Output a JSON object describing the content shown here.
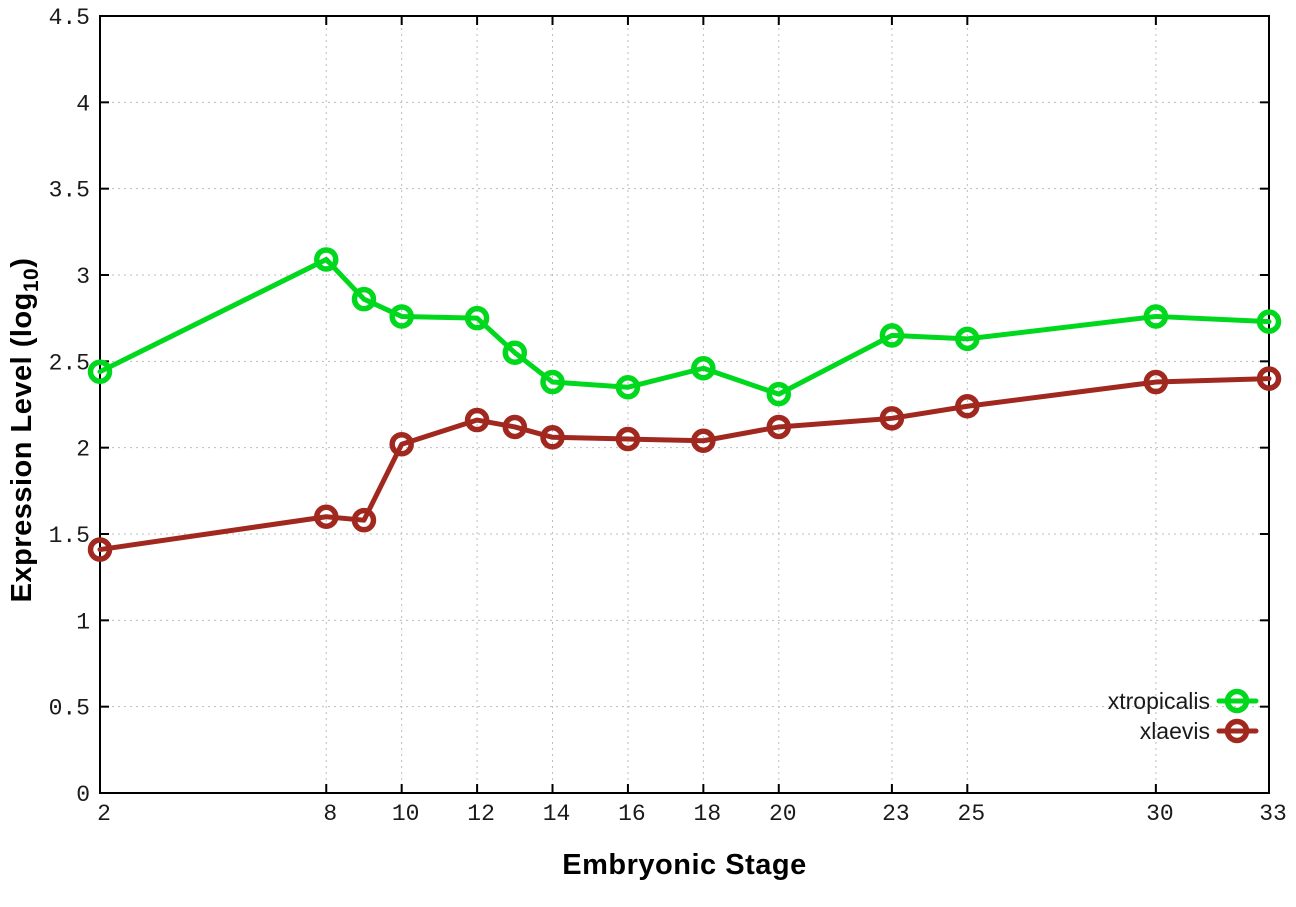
{
  "figure": {
    "background": "#ffffff",
    "frame_color": "#000000",
    "grid_color": "#bdbdbd",
    "tick_color": "#000000",
    "text_color": "#1a1a1a"
  },
  "chart_data": {
    "type": "line",
    "title": "",
    "xlabel": "Embryonic Stage",
    "ylabel": "Expression Level (log10)",
    "ylabel_parts": {
      "prefix": "Expression Level (log",
      "sub": "10",
      "suffix": ")"
    },
    "xlim": [
      2,
      33
    ],
    "ylim": [
      0,
      4.5
    ],
    "x_ticks": [
      2,
      8,
      10,
      12,
      14,
      16,
      18,
      20,
      23,
      25,
      30,
      33
    ],
    "x_tick_labels": [
      "2",
      "8",
      "10",
      "12",
      "14",
      "16",
      "18",
      "20",
      "23",
      "25",
      "30",
      "33"
    ],
    "y_ticks": [
      0,
      0.5,
      1,
      1.5,
      2,
      2.5,
      3,
      3.5,
      4,
      4.5
    ],
    "y_tick_labels": [
      "0",
      "0.5",
      "1",
      "1.5",
      "2",
      "2.5",
      "3",
      "3.5",
      "4",
      "4.5"
    ],
    "grid": true,
    "legend_position": "inside-bottom-right",
    "x": [
      2,
      8,
      9,
      10,
      12,
      13,
      14,
      16,
      18,
      20,
      23,
      25,
      30,
      33
    ],
    "series": [
      {
        "name": "xtropicalis",
        "color": "#00d81e",
        "values": [
          2.44,
          3.09,
          2.86,
          2.76,
          2.75,
          2.55,
          2.38,
          2.35,
          2.46,
          2.31,
          2.65,
          2.63,
          2.76,
          2.73
        ]
      },
      {
        "name": "xlaevis",
        "color": "#a1281f",
        "values": [
          1.41,
          1.6,
          1.58,
          2.02,
          2.16,
          2.12,
          2.06,
          2.05,
          2.04,
          2.12,
          2.17,
          2.24,
          2.38,
          2.4
        ]
      }
    ]
  }
}
